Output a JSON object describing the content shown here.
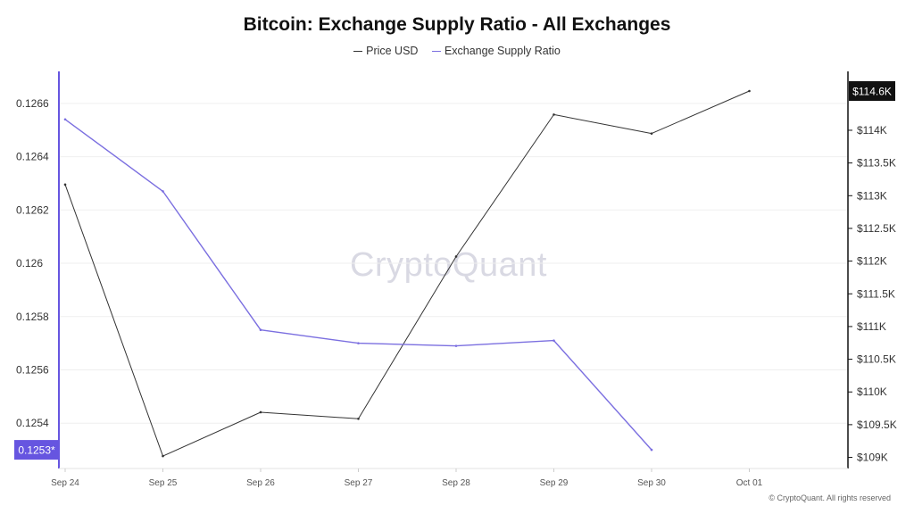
{
  "chart_data": {
    "type": "line",
    "title": "Bitcoin: Exchange Supply Ratio - All Exchanges",
    "categories": [
      "Sep 24",
      "Sep 25",
      "Sep 26",
      "Sep 27",
      "Sep 28",
      "Sep 29",
      "Sep 30",
      "Oct 01"
    ],
    "series": [
      {
        "name": "Price USD",
        "axis": "right",
        "color": "#333333",
        "values": [
          113170,
          109020,
          109690,
          109590,
          112070,
          114240,
          113950,
          114600
        ]
      },
      {
        "name": "Exchange Supply Ratio",
        "axis": "left",
        "color": "#7b6fe0",
        "values": [
          0.12654,
          0.12627,
          0.12575,
          0.1257,
          0.12569,
          0.12571,
          0.1253,
          null
        ]
      }
    ],
    "left_axis": {
      "ticks": [
        0.1254,
        0.1256,
        0.1258,
        0.126,
        0.1262,
        0.1264,
        0.1266
      ],
      "tick_labels": [
        "0.1254",
        "0.1256",
        "0.1258",
        "0.126",
        "0.1262",
        "0.1264",
        "0.1266"
      ],
      "range": [
        0.12523,
        0.12672
      ],
      "current_label": "0.1253*",
      "current_value": 0.1253,
      "color": "#6655e0"
    },
    "right_axis": {
      "ticks": [
        109000,
        109500,
        110000,
        110500,
        111000,
        111500,
        112000,
        112500,
        113000,
        113500,
        114000
      ],
      "tick_labels": [
        "$109K",
        "$109.5K",
        "$110K",
        "$110.5K",
        "$111K",
        "$111.5K",
        "$112K",
        "$112.5K",
        "$113K",
        "$113.5K",
        "$114K"
      ],
      "range": [
        108830,
        114900
      ],
      "current_label": "$114.6K",
      "current_value": 114600
    },
    "grid": true,
    "legend_position": "top-center"
  },
  "watermark": "CryptoQuant",
  "copyright": "© CryptoQuant. All rights reserved"
}
